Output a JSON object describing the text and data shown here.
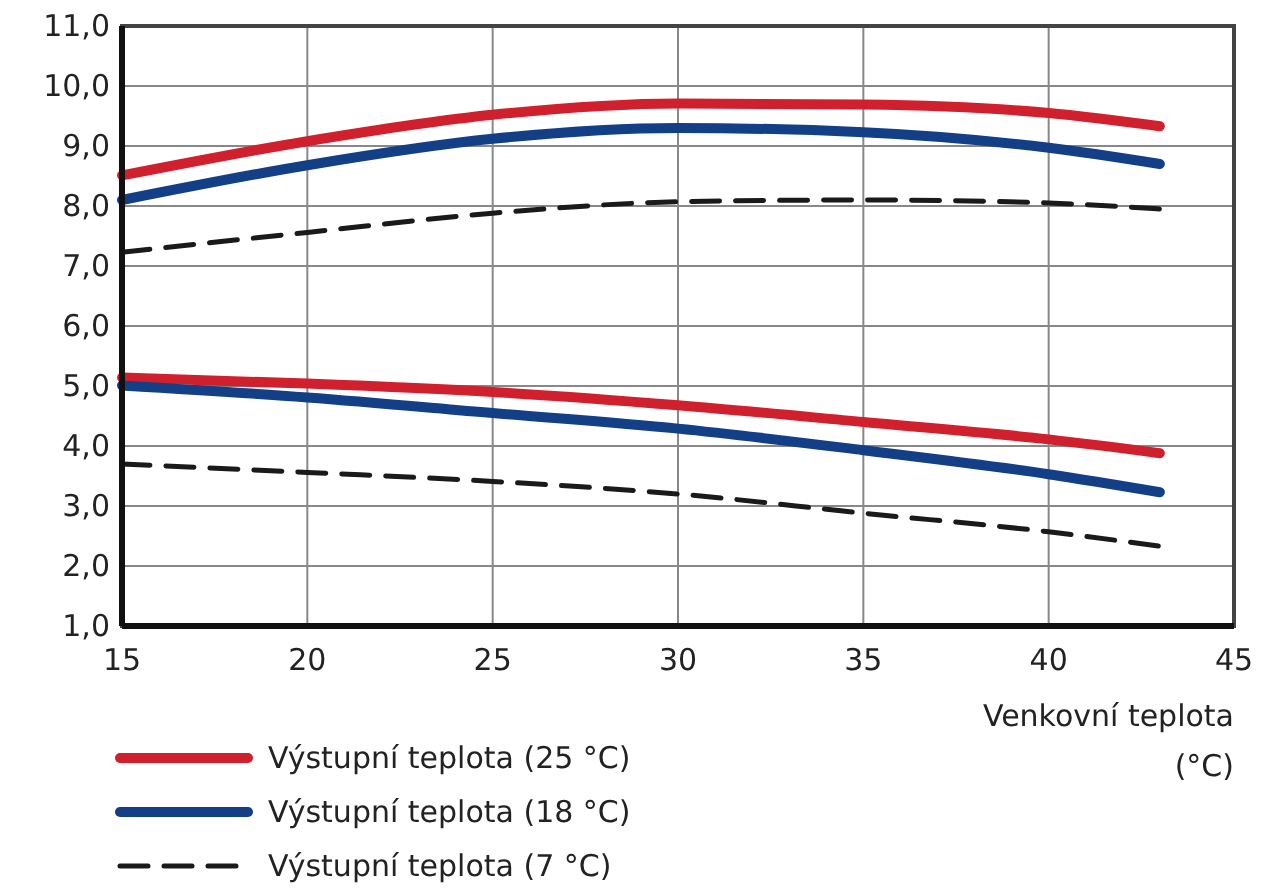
{
  "chart_data": {
    "type": "line",
    "xlabel": "Venkovní teplota (°C)",
    "x": [
      15,
      20,
      25,
      30,
      35,
      40,
      43
    ],
    "xlim": [
      15,
      45
    ],
    "xticks": [
      15,
      20,
      25,
      30,
      35,
      40,
      45
    ],
    "ylim": [
      1,
      11
    ],
    "yticks": [
      {
        "value": 1,
        "label": "1,0"
      },
      {
        "value": 2,
        "label": "2,0"
      },
      {
        "value": 3,
        "label": "3,0"
      },
      {
        "value": 4,
        "label": "4,0"
      },
      {
        "value": 5,
        "label": "5,0"
      },
      {
        "value": 6,
        "label": "6,0"
      },
      {
        "value": 7,
        "label": "7,0"
      },
      {
        "value": 8,
        "label": "8,0"
      },
      {
        "value": 9,
        "label": "9,0"
      },
      {
        "value": 10,
        "label": "10,0"
      },
      {
        "value": 11,
        "label": "11,0"
      }
    ],
    "grid": true,
    "legend": "bottom left",
    "marker": "none",
    "series": [
      {
        "name": "Výstupní teplota (25 °C)",
        "color": "#d0202e",
        "line_style": "solid",
        "values": [
          8.51,
          9.08,
          9.52,
          9.71,
          9.69,
          9.55,
          9.33
        ]
      },
      {
        "name": "Výstupní teplota (18 °C)",
        "color": "#123f85",
        "line_style": "solid",
        "values": [
          8.1,
          8.68,
          9.12,
          9.3,
          9.23,
          8.97,
          8.7
        ]
      },
      {
        "name": "Výstupní teplota (7 °C)",
        "color": "#1a1a1a",
        "line_style": "dashed",
        "values": [
          7.23,
          7.56,
          7.88,
          8.07,
          8.1,
          8.05,
          7.95
        ]
      },
      {
        "color": "#d0202e",
        "line_style": "solid",
        "values": [
          5.14,
          5.04,
          4.9,
          4.68,
          4.4,
          4.11,
          3.88
        ]
      },
      {
        "color": "#123f85",
        "line_style": "solid",
        "values": [
          5.01,
          4.81,
          4.55,
          4.29,
          3.93,
          3.53,
          3.23
        ]
      },
      {
        "color": "#1a1a1a",
        "line_style": "dashed",
        "values": [
          3.7,
          3.56,
          3.41,
          3.2,
          2.88,
          2.57,
          2.33
        ]
      }
    ]
  }
}
